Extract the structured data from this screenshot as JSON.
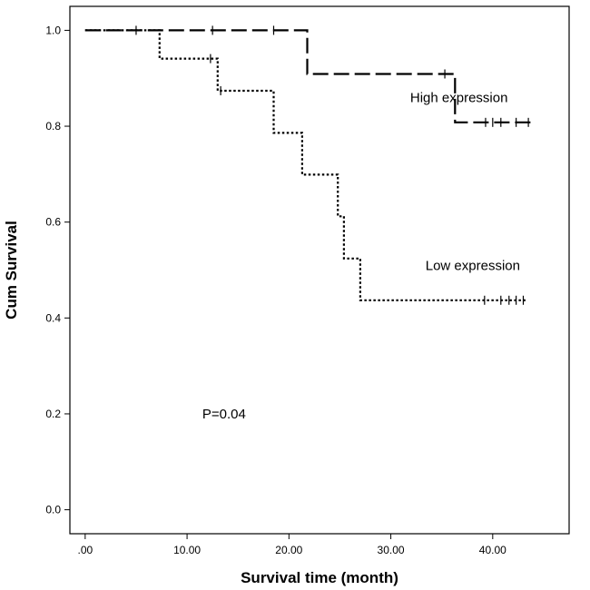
{
  "chart_data": {
    "type": "line",
    "subtype": "kaplan-meier",
    "title": "",
    "xlabel": "Survival time (month)",
    "ylabel": "Cum Survival",
    "xlim": [
      -1.5,
      47.5
    ],
    "ylim": [
      -0.05,
      1.05
    ],
    "xticks": [
      0,
      10,
      20,
      30,
      40
    ],
    "xtick_labels": [
      ".00",
      "10.00",
      "20.00",
      "30.00",
      "40.00"
    ],
    "yticks": [
      0.0,
      0.2,
      0.4,
      0.6,
      0.8,
      1.0
    ],
    "ytick_labels": [
      "0.0",
      "0.2",
      "0.4",
      "0.6",
      "0.8",
      "1.0"
    ],
    "grid": false,
    "series": [
      {
        "name": "High expression",
        "line_style": "dashed",
        "steps": [
          [
            0,
            1.0
          ],
          [
            21.8,
            1.0
          ],
          [
            21.8,
            0.909
          ],
          [
            36.3,
            0.909
          ],
          [
            36.3,
            0.808
          ],
          [
            44.2,
            0.808
          ]
        ],
        "censored": [
          [
            5,
            1.0
          ],
          [
            12.5,
            1.0
          ],
          [
            18.5,
            1.0
          ],
          [
            35.3,
            0.909
          ],
          [
            39.3,
            0.808
          ],
          [
            40.0,
            0.808
          ],
          [
            40.8,
            0.808
          ],
          [
            42.3,
            0.808
          ],
          [
            43.5,
            0.808
          ]
        ]
      },
      {
        "name": "Low expression",
        "line_style": "dotted",
        "steps": [
          [
            0,
            1.0
          ],
          [
            7.3,
            1.0
          ],
          [
            7.3,
            0.941
          ],
          [
            13.0,
            0.941
          ],
          [
            13.0,
            0.874
          ],
          [
            18.5,
            0.874
          ],
          [
            18.5,
            0.786
          ],
          [
            21.3,
            0.786
          ],
          [
            21.3,
            0.699
          ],
          [
            24.8,
            0.699
          ],
          [
            24.8,
            0.612
          ],
          [
            25.4,
            0.612
          ],
          [
            25.4,
            0.524
          ],
          [
            27.0,
            0.524
          ],
          [
            27.0,
            0.437
          ],
          [
            43.3,
            0.437
          ]
        ],
        "censored": [
          [
            12.3,
            0.941
          ],
          [
            13.3,
            0.874
          ],
          [
            39.2,
            0.437
          ],
          [
            40.8,
            0.437
          ],
          [
            41.6,
            0.437
          ],
          [
            42.3,
            0.437
          ],
          [
            43.0,
            0.437
          ]
        ]
      }
    ],
    "annotations": [
      {
        "text": "High expression",
        "x": 31.9,
        "y": 0.85
      },
      {
        "text": "Low expression",
        "x": 33.4,
        "y": 0.5
      },
      {
        "text": "P=0.04",
        "x": 11.5,
        "y": 0.19
      }
    ]
  }
}
